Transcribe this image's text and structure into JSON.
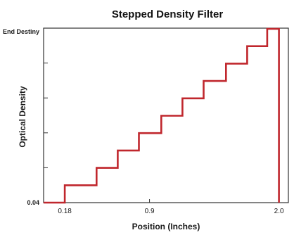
{
  "chart_data": {
    "type": "line",
    "title": "Stepped Density Filter",
    "xlabel": "Position (Inches)",
    "ylabel": "Optical Density",
    "x_tick_labels": [
      "0.18",
      "0.9",
      "2.0"
    ],
    "x_tick_values": [
      0.18,
      0.9,
      2.0
    ],
    "y_tick_labels": [
      "0.04",
      "End Destiny"
    ],
    "xlim": [
      0.0,
      2.08
    ],
    "ylim": [
      0,
      10
    ],
    "grid": false,
    "line_color": "#c0272d",
    "series": [
      {
        "x": [
          0.0,
          0.18,
          0.18,
          0.45,
          0.45,
          0.63,
          0.63,
          0.81,
          0.81,
          1.0,
          1.0,
          1.18,
          1.18,
          1.36,
          1.36,
          1.55,
          1.55,
          1.73,
          1.73,
          1.9,
          1.9,
          2.0,
          2.0
        ],
        "y": [
          0.0,
          0.0,
          1.0,
          1.0,
          2.0,
          2.0,
          3.0,
          3.0,
          4.0,
          4.0,
          5.0,
          5.0,
          6.0,
          6.0,
          7.0,
          7.0,
          8.0,
          8.0,
          9.0,
          9.0,
          10.0,
          10.0,
          0.0
        ]
      }
    ]
  }
}
